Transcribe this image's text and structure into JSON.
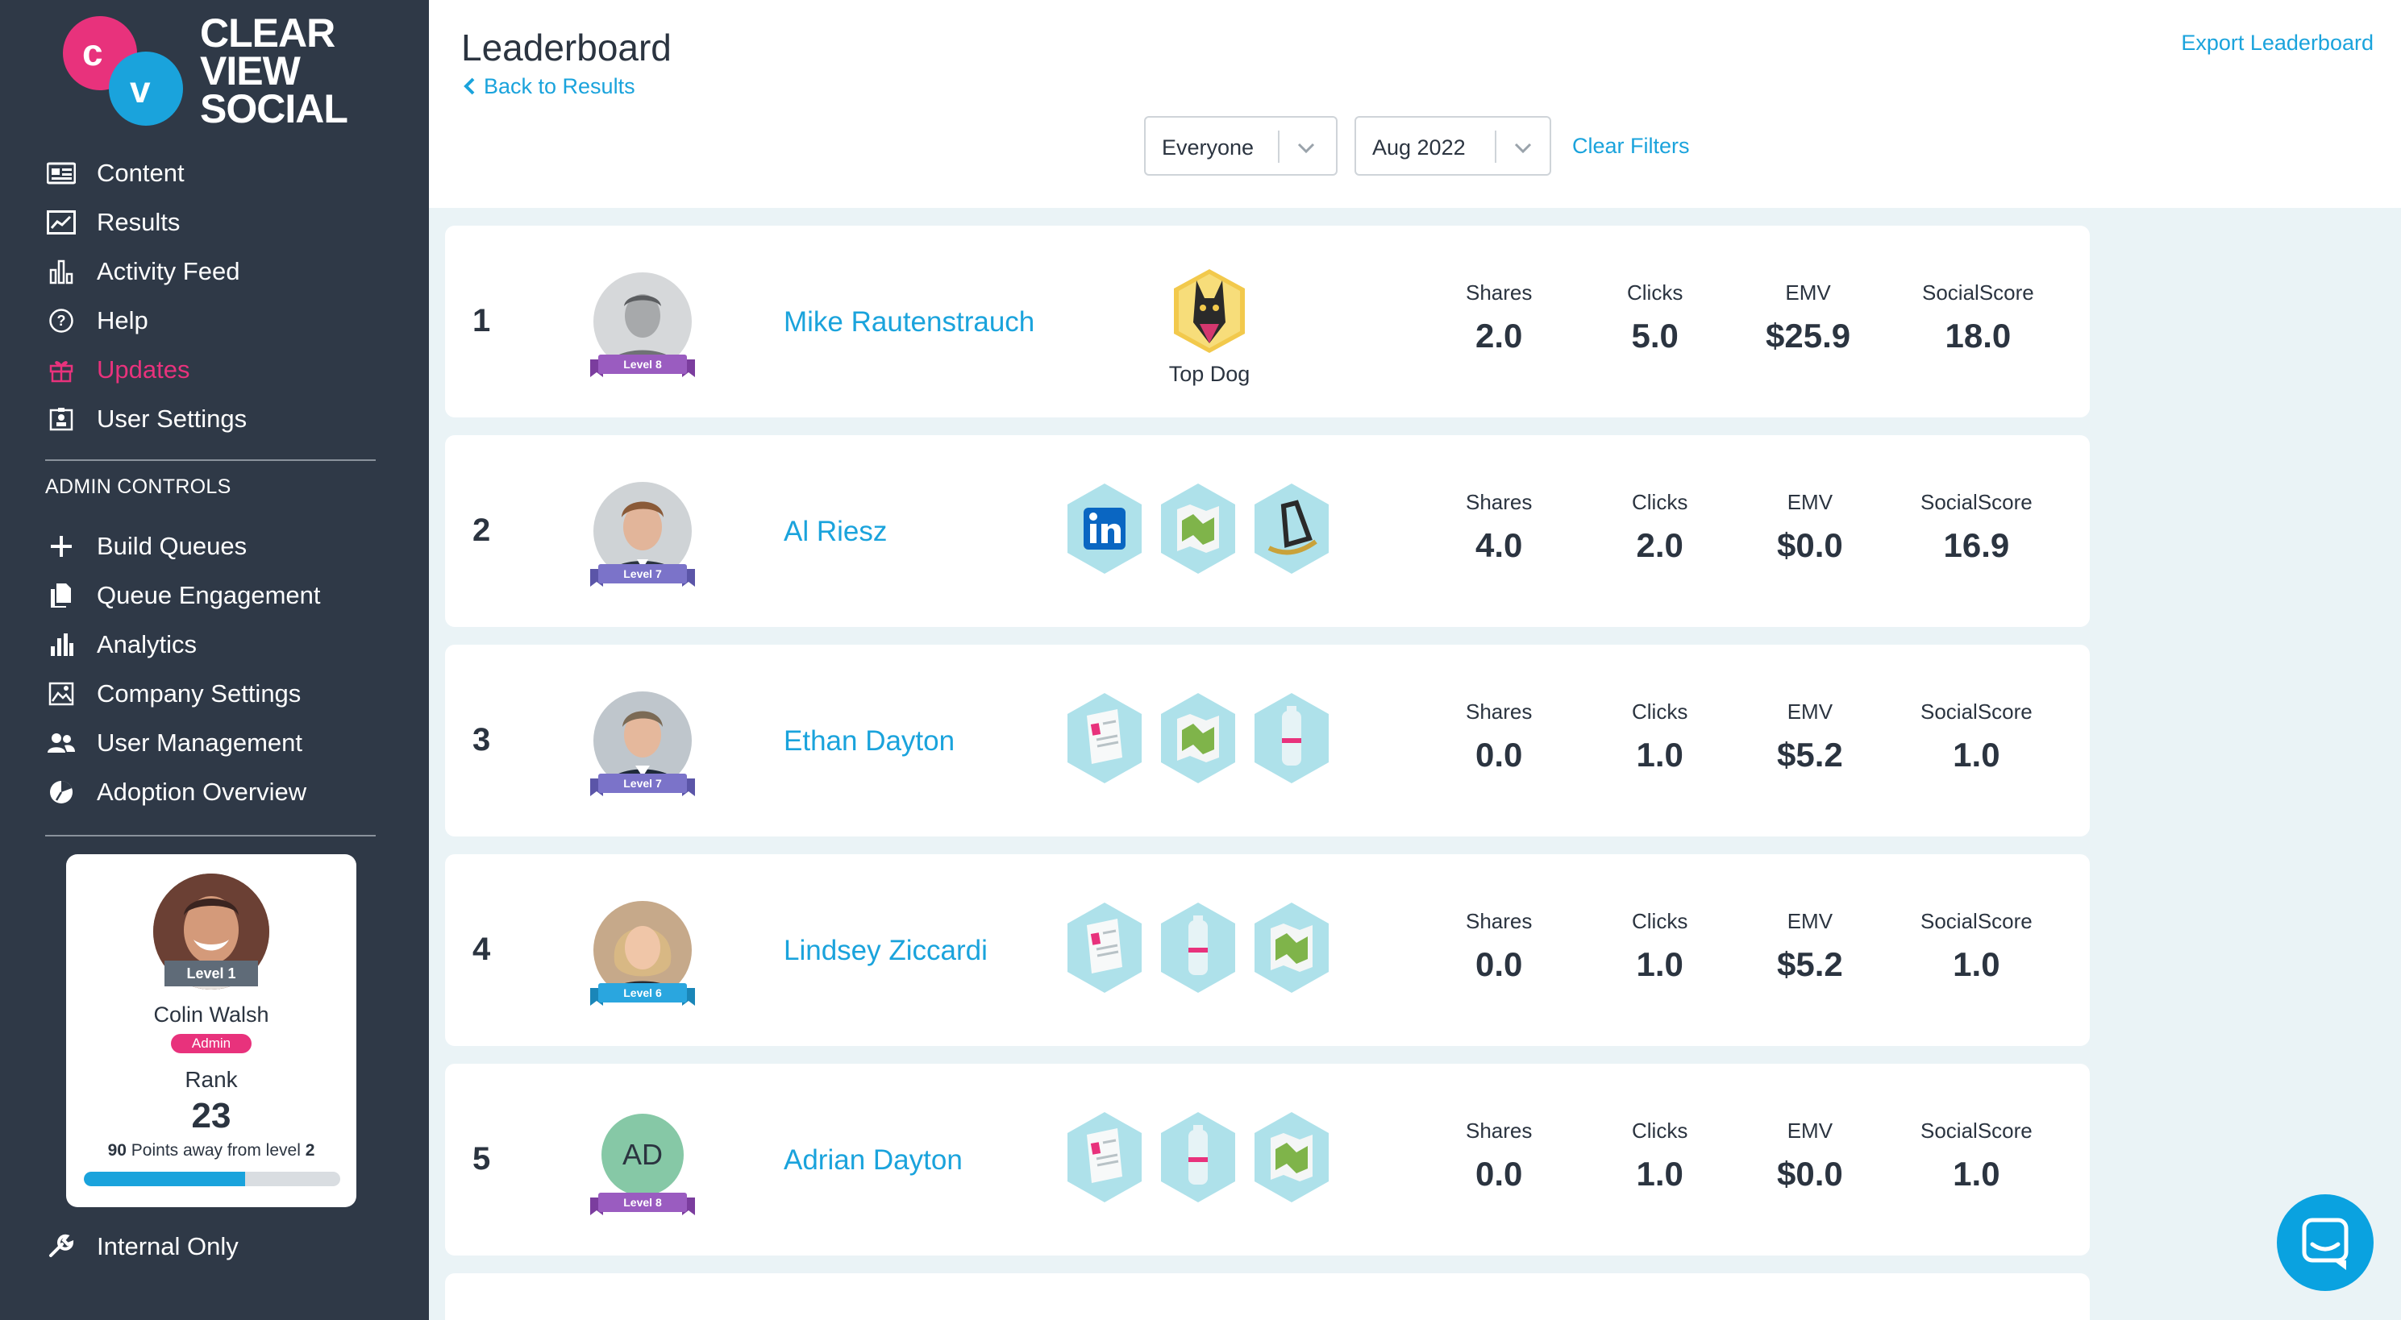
{
  "brand": {
    "logo_c": "c",
    "logo_v": "v",
    "word1": "CLEAR",
    "word2": "VIEW",
    "word3": "SOCIAL",
    "pink": "#e8327c",
    "blue": "#1aa3dc"
  },
  "nav": {
    "items": [
      {
        "label": "Content",
        "icon": "newspaper-icon"
      },
      {
        "label": "Results",
        "icon": "chart-line-icon"
      },
      {
        "label": "Activity Feed",
        "icon": "bar-chart-icon"
      },
      {
        "label": "Help",
        "icon": "help-circle-icon"
      },
      {
        "label": "Updates",
        "icon": "gift-icon"
      },
      {
        "label": "User Settings",
        "icon": "id-card-icon"
      }
    ],
    "admin_heading": "ADMIN CONTROLS",
    "admin_items": [
      {
        "label": "Build Queues",
        "icon": "plus-icon"
      },
      {
        "label": "Queue Engagement",
        "icon": "documents-icon"
      },
      {
        "label": "Analytics",
        "icon": "analytics-icon"
      },
      {
        "label": "Company Settings",
        "icon": "image-settings-icon"
      },
      {
        "label": "User Management",
        "icon": "users-icon"
      },
      {
        "label": "Adoption Overview",
        "icon": "pie-icon"
      }
    ],
    "internal": {
      "label": "Internal Only",
      "icon": "wrench-icon"
    }
  },
  "profile": {
    "level": "Level 1",
    "name": "Colin Walsh",
    "role": "Admin",
    "rank_label": "Rank",
    "rank": "23",
    "points_num": "90",
    "points_text": " Points away from level ",
    "points_level": "2",
    "progress": 0.63
  },
  "header": {
    "title": "Leaderboard",
    "back": "Back to Results",
    "export": "Export Leaderboard",
    "filter_people": "Everyone",
    "filter_month": "Aug 2022",
    "clear": "Clear Filters"
  },
  "stat_labels": {
    "shares": "Shares",
    "clicks": "Clicks",
    "emv": "EMV",
    "score": "SocialScore"
  },
  "rows": [
    {
      "rank": "1",
      "name": "Mike Rautenstrauch",
      "level": "Level 8",
      "ribbon": "#9a5cc0",
      "badge_label": "Top Dog",
      "shares": "2.0",
      "clicks": "5.0",
      "emv": "$25.9",
      "score": "18.0"
    },
    {
      "rank": "2",
      "name": "Al Riesz",
      "level": "Level 7",
      "ribbon": "#7b73c9",
      "shares": "4.0",
      "clicks": "2.0",
      "emv": "$0.0",
      "score": "16.9"
    },
    {
      "rank": "3",
      "name": "Ethan Dayton",
      "level": "Level 7",
      "ribbon": "#7b73c9",
      "shares": "0.0",
      "clicks": "1.0",
      "emv": "$5.2",
      "score": "1.0"
    },
    {
      "rank": "4",
      "name": "Lindsey Ziccardi",
      "level": "Level 6",
      "ribbon": "#2aa6df",
      "shares": "0.0",
      "clicks": "1.0",
      "emv": "$5.2",
      "score": "1.0"
    },
    {
      "rank": "5",
      "name": "Adrian Dayton",
      "level": "Level 8",
      "ribbon": "#9a5cc0",
      "initials": "AD",
      "shares": "0.0",
      "clicks": "1.0",
      "emv": "$0.0",
      "score": "1.0"
    }
  ]
}
